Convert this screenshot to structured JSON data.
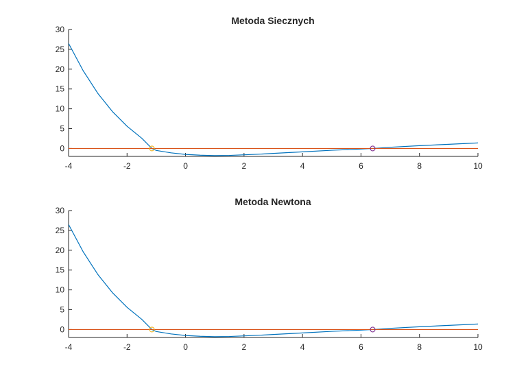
{
  "figure": {
    "background": "#ffffff"
  },
  "chart_data": [
    {
      "type": "line",
      "title": "Metoda Siecznych",
      "xlim": [
        -4,
        10
      ],
      "ylim": [
        -2,
        30
      ],
      "xticks": [
        -4,
        -2,
        0,
        2,
        4,
        6,
        8,
        10
      ],
      "yticks": [
        0,
        5,
        10,
        15,
        20,
        25,
        30
      ],
      "grid": false,
      "series": [
        {
          "kind": "curve",
          "color": "#0072bd",
          "x": [
            -4,
            -3.5,
            -3,
            -2.5,
            -2,
            -1.5,
            -1.15,
            -1,
            -0.5,
            0,
            0.5,
            1,
            1.5,
            2,
            2.5,
            3,
            4,
            5,
            6,
            6.4,
            7,
            8,
            9,
            10
          ],
          "y": [
            26.5,
            19.6,
            13.9,
            9.3,
            5.6,
            2.6,
            0.0,
            -0.5,
            -1.1,
            -1.5,
            -1.7,
            -1.8,
            -1.75,
            -1.6,
            -1.45,
            -1.25,
            -0.85,
            -0.45,
            -0.15,
            0.0,
            0.3,
            0.7,
            1.05,
            1.4
          ]
        },
        {
          "kind": "zero-line",
          "color": "#d95319",
          "x": [
            -4,
            10
          ],
          "y": [
            0,
            0
          ]
        }
      ],
      "markers": [
        {
          "x": -1.15,
          "y": 0,
          "color": "#edb120",
          "symbol": "circle"
        },
        {
          "x": 6.4,
          "y": 0,
          "color": "#7e2f8e",
          "symbol": "circle"
        }
      ]
    },
    {
      "type": "line",
      "title": "Metoda Newtona",
      "xlim": [
        -4,
        10
      ],
      "ylim": [
        -2,
        30
      ],
      "xticks": [
        -4,
        -2,
        0,
        2,
        4,
        6,
        8,
        10
      ],
      "yticks": [
        0,
        5,
        10,
        15,
        20,
        25,
        30
      ],
      "grid": false,
      "series": [
        {
          "kind": "curve",
          "color": "#0072bd",
          "x": [
            -4,
            -3.5,
            -3,
            -2.5,
            -2,
            -1.5,
            -1.15,
            -1,
            -0.5,
            0,
            0.5,
            1,
            1.5,
            2,
            2.5,
            3,
            4,
            5,
            6,
            6.4,
            7,
            8,
            9,
            10
          ],
          "y": [
            26.5,
            19.6,
            13.9,
            9.3,
            5.6,
            2.6,
            0.0,
            -0.5,
            -1.1,
            -1.5,
            -1.7,
            -1.8,
            -1.75,
            -1.6,
            -1.45,
            -1.25,
            -0.85,
            -0.45,
            -0.15,
            0.0,
            0.3,
            0.7,
            1.05,
            1.4
          ]
        },
        {
          "kind": "zero-line",
          "color": "#d95319",
          "x": [
            -4,
            10
          ],
          "y": [
            0,
            0
          ]
        }
      ],
      "markers": [
        {
          "x": -1.15,
          "y": 0,
          "color": "#edb120",
          "symbol": "circle"
        },
        {
          "x": 6.4,
          "y": 0,
          "color": "#7e2f8e",
          "symbol": "circle"
        }
      ]
    }
  ]
}
